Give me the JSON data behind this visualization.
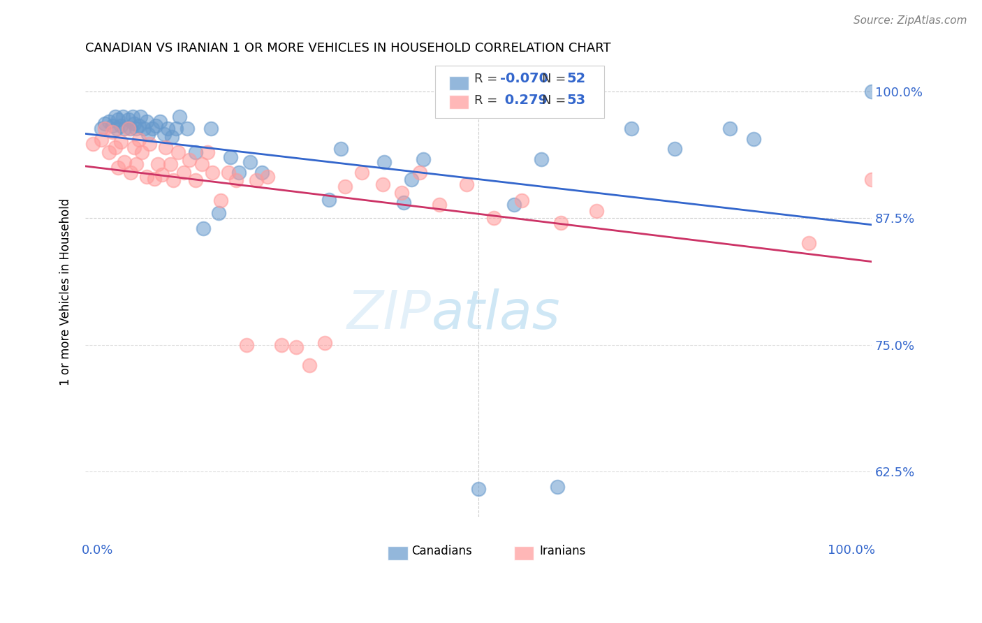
{
  "title": "CANADIAN VS IRANIAN 1 OR MORE VEHICLES IN HOUSEHOLD CORRELATION CHART",
  "source": "Source: ZipAtlas.com",
  "ylabel": "1 or more Vehicles in Household",
  "legend_canadian": "Canadians",
  "legend_iranian": "Iranians",
  "legend_r_canadian": "R = -0.070",
  "legend_n_canadian": "N = 52",
  "legend_r_iranian": "R =  0.279",
  "legend_n_iranian": "N = 53",
  "canadian_color": "#6699cc",
  "iranian_color": "#ff9999",
  "canadian_line_color": "#3366cc",
  "iranian_line_color": "#cc3366",
  "watermark_zip": "ZIP",
  "watermark_atlas": "atlas",
  "xlim": [
    0.0,
    1.0
  ],
  "ylim": [
    0.58,
    1.025
  ],
  "can_x": [
    0.02,
    0.025,
    0.03,
    0.035,
    0.038,
    0.04,
    0.042,
    0.045,
    0.048,
    0.05,
    0.055,
    0.058,
    0.06,
    0.062,
    0.065,
    0.068,
    0.07,
    0.075,
    0.078,
    0.08,
    0.085,
    0.09,
    0.095,
    0.1,
    0.105,
    0.11,
    0.115,
    0.12,
    0.13,
    0.14,
    0.15,
    0.16,
    0.17,
    0.185,
    0.195,
    0.21,
    0.225,
    0.31,
    0.325,
    0.38,
    0.405,
    0.415,
    0.43,
    0.5,
    0.545,
    0.58,
    0.6,
    0.695,
    0.75,
    0.82,
    0.85,
    1.0
  ],
  "can_y": [
    0.963,
    0.968,
    0.97,
    0.966,
    0.975,
    0.963,
    0.972,
    0.966,
    0.975,
    0.963,
    0.972,
    0.963,
    0.975,
    0.968,
    0.963,
    0.966,
    0.975,
    0.963,
    0.97,
    0.958,
    0.963,
    0.966,
    0.97,
    0.958,
    0.963,
    0.955,
    0.963,
    0.975,
    0.963,
    0.94,
    0.865,
    0.963,
    0.88,
    0.935,
    0.92,
    0.93,
    0.92,
    0.893,
    0.943,
    0.93,
    0.89,
    0.913,
    0.933,
    0.608,
    0.888,
    0.933,
    0.61,
    0.963,
    0.943,
    0.963,
    0.953,
    1.0
  ],
  "iran_x": [
    0.01,
    0.02,
    0.025,
    0.03,
    0.035,
    0.038,
    0.042,
    0.045,
    0.05,
    0.055,
    0.058,
    0.062,
    0.065,
    0.068,
    0.072,
    0.078,
    0.082,
    0.088,
    0.092,
    0.098,
    0.102,
    0.108,
    0.112,
    0.118,
    0.125,
    0.132,
    0.14,
    0.148,
    0.155,
    0.162,
    0.172,
    0.182,
    0.192,
    0.205,
    0.218,
    0.232,
    0.25,
    0.268,
    0.285,
    0.305,
    0.33,
    0.352,
    0.378,
    0.402,
    0.425,
    0.45,
    0.485,
    0.52,
    0.555,
    0.605,
    0.65,
    0.92,
    1.0
  ],
  "iran_y": [
    0.948,
    0.952,
    0.963,
    0.94,
    0.96,
    0.945,
    0.925,
    0.95,
    0.93,
    0.963,
    0.92,
    0.945,
    0.928,
    0.952,
    0.94,
    0.916,
    0.948,
    0.914,
    0.928,
    0.918,
    0.945,
    0.928,
    0.912,
    0.94,
    0.92,
    0.932,
    0.912,
    0.928,
    0.94,
    0.92,
    0.892,
    0.92,
    0.912,
    0.75,
    0.912,
    0.916,
    0.75,
    0.748,
    0.73,
    0.752,
    0.906,
    0.92,
    0.908,
    0.9,
    0.92,
    0.888,
    0.908,
    0.875,
    0.892,
    0.87,
    0.882,
    0.85,
    0.913
  ]
}
